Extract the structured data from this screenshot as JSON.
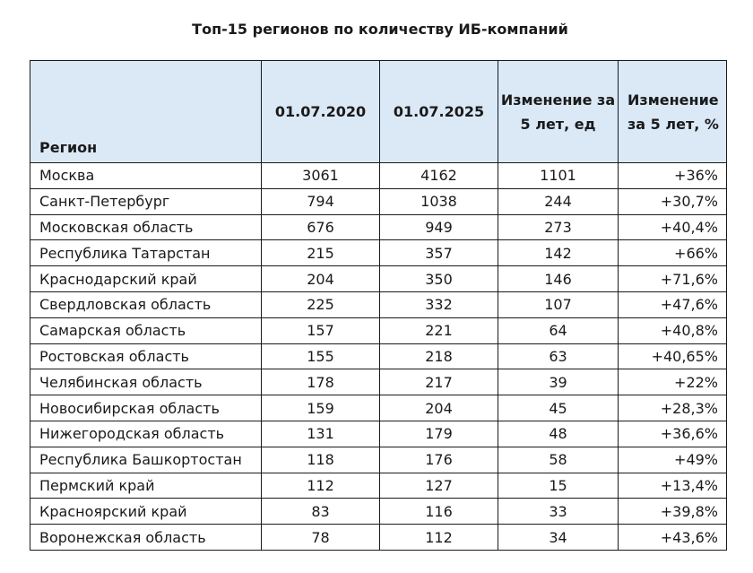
{
  "title": "Топ-15 регионов по количеству ИБ-компаний",
  "table": {
    "header": {
      "region": "Регион",
      "date_2020": "01.07.2020",
      "date_2025": "01.07.2025",
      "change_units": "Изменение за 5 лет, ед",
      "change_pct": "Изменение за 5 лет, %"
    },
    "rows": [
      {
        "region": "Москва",
        "v2020": "3061",
        "v2025": "4162",
        "change": "1101",
        "pct": "+36%"
      },
      {
        "region": "Санкт-Петербург",
        "v2020": "794",
        "v2025": "1038",
        "change": "244",
        "pct": "+30,7%"
      },
      {
        "region": "Московская область",
        "v2020": "676",
        "v2025": "949",
        "change": "273",
        "pct": "+40,4%"
      },
      {
        "region": "Республика Татарстан",
        "v2020": "215",
        "v2025": "357",
        "change": "142",
        "pct": "+66%"
      },
      {
        "region": "Краснодарский край",
        "v2020": "204",
        "v2025": "350",
        "change": "146",
        "pct": "+71,6%"
      },
      {
        "region": "Свердловская область",
        "v2020": "225",
        "v2025": "332",
        "change": "107",
        "pct": "+47,6%"
      },
      {
        "region": "Самарская область",
        "v2020": "157",
        "v2025": "221",
        "change": "64",
        "pct": "+40,8%"
      },
      {
        "region": "Ростовская область",
        "v2020": "155",
        "v2025": "218",
        "change": "63",
        "pct": "+40,65%"
      },
      {
        "region": "Челябинская область",
        "v2020": "178",
        "v2025": "217",
        "change": "39",
        "pct": "+22%"
      },
      {
        "region": "Новосибирская область",
        "v2020": "159",
        "v2025": "204",
        "change": "45",
        "pct": "+28,3%"
      },
      {
        "region": "Нижегородская область",
        "v2020": "131",
        "v2025": "179",
        "change": "48",
        "pct": "+36,6%"
      },
      {
        "region": "Республика Башкортостан",
        "v2020": "118",
        "v2025": "176",
        "change": "58",
        "pct": "+49%"
      },
      {
        "region": "Пермский край",
        "v2020": "112",
        "v2025": "127",
        "change": "15",
        "pct": "+13,4%"
      },
      {
        "region": "Красноярский край",
        "v2020": "83",
        "v2025": "116",
        "change": "33",
        "pct": "+39,8%"
      },
      {
        "region": "Воронежская область",
        "v2020": "78",
        "v2025": "112",
        "change": "34",
        "pct": "+43,6%"
      }
    ]
  },
  "colors": {
    "header_background": "#dbe9f7",
    "border": "#1a1a1a",
    "text": "#1a1a1a"
  }
}
